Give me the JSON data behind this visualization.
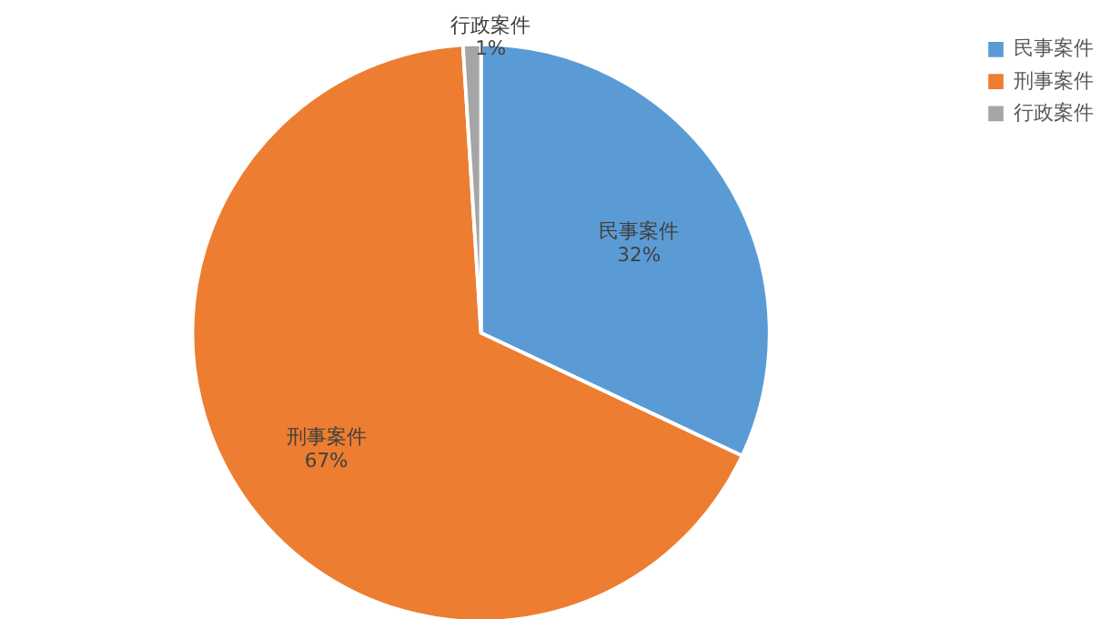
{
  "chart_data": {
    "type": "pie",
    "categories": [
      "民事案件",
      "刑事案件",
      "行政案件"
    ],
    "values": [
      32,
      67,
      1
    ],
    "colors": [
      "#5b9bd5",
      "#ed7d31",
      "#a5a5a5"
    ],
    "value_labels": [
      "32%",
      "67%",
      "1%"
    ],
    "legend": "right"
  }
}
